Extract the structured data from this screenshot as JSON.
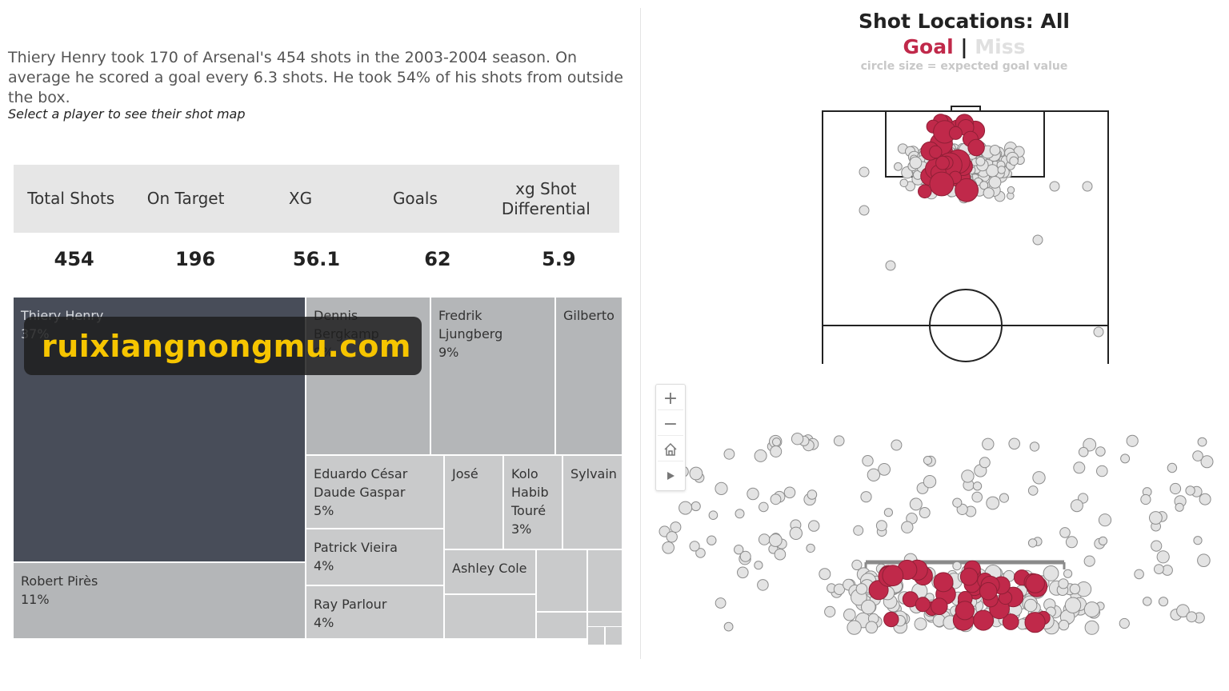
{
  "summary": "Thiery Henry took 170 of Arsenal's 454 shots in the 2003-2004 season. On average he scored a goal every 6.3 shots. He took 54% of his shots from outside the box.",
  "hint": "Select a player to see their shot map",
  "stats": {
    "headers": [
      "Total Shots",
      "On Target",
      "XG",
      "Goals",
      "xg Shot Differential"
    ],
    "values": [
      "454",
      "196",
      "56.1",
      "62",
      "5.9"
    ]
  },
  "treemap": {
    "colors": {
      "selected": "#484d59",
      "large": "#b4b6b8",
      "small": "#c9cacb"
    },
    "tiles": [
      {
        "name": "Thiery Henry",
        "pct": "37%"
      },
      {
        "name": "Robert Pirès",
        "pct": "11%"
      },
      {
        "name": "Dennis Bergkamp",
        "pct": "9%"
      },
      {
        "name": "Fredrik Ljungberg",
        "pct": "9%"
      },
      {
        "name": "Gilberto",
        "pct": ""
      },
      {
        "name": "Eduardo César Daude Gaspar",
        "pct": "5%"
      },
      {
        "name": "Patrick Vieira",
        "pct": "4%"
      },
      {
        "name": "Ray Parlour",
        "pct": "4%"
      },
      {
        "name": "José",
        "pct": ""
      },
      {
        "name": "Kolo Habib Touré",
        "pct": "3%"
      },
      {
        "name": "Sylvain",
        "pct": ""
      },
      {
        "name": "Ashley Cole",
        "pct": ""
      },
      {
        "name": "",
        "pct": ""
      },
      {
        "name": "",
        "pct": ""
      },
      {
        "name": "",
        "pct": ""
      },
      {
        "name": "",
        "pct": ""
      },
      {
        "name": "",
        "pct": ""
      },
      {
        "name": "",
        "pct": ""
      },
      {
        "name": "",
        "pct": ""
      }
    ]
  },
  "watermark": "ruixiangnongmu.com",
  "shotmap": {
    "title": "Shot Locations: All",
    "legend_goal": "Goal",
    "legend_sep": "|",
    "legend_miss": "Miss",
    "subtitle": "circle size = expected goal value",
    "goal_color": "#c0294a",
    "miss_color": "#e3e3e3"
  },
  "zoom": {
    "icons": [
      "zoom-in-icon",
      "zoom-out-icon",
      "home-icon",
      "play-icon"
    ],
    "zoom_in": "+",
    "zoom_out": "−"
  },
  "chart_data": {
    "type": "treemap",
    "title": "",
    "categories": [
      "Thiery Henry",
      "Robert Pirès",
      "Dennis Bergkamp",
      "Fredrik Ljungberg",
      "Eduardo César Daude Gaspar",
      "Patrick Vieira",
      "Ray Parlour",
      "Kolo Habib Touré"
    ],
    "values": [
      37,
      11,
      9,
      9,
      5,
      4,
      4,
      3
    ],
    "unit": "% of shots",
    "shotmap": {
      "type": "scatter",
      "series": [
        {
          "name": "Goal",
          "count": 62
        },
        {
          "name": "Miss",
          "count": 392
        }
      ]
    }
  }
}
